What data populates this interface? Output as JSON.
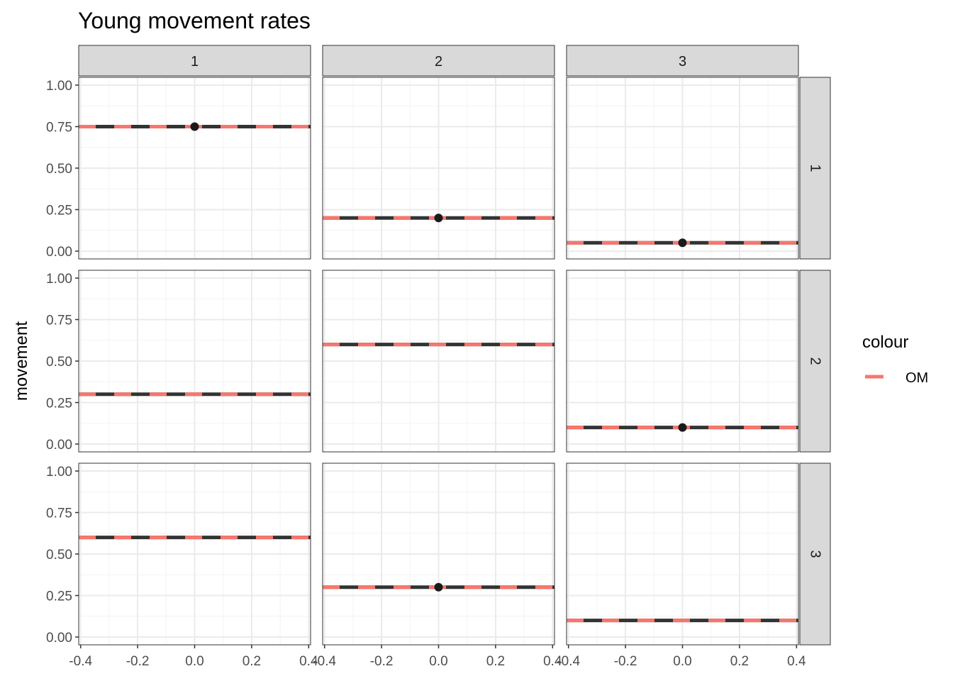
{
  "chart_data": {
    "type": "line",
    "title": "Young movement rates",
    "ylabel": "movement",
    "xlabel": "",
    "xlim": [
      -0.4,
      0.4
    ],
    "ylim": [
      0,
      1
    ],
    "xticks": [
      -0.4,
      -0.2,
      0.0,
      0.2,
      0.4
    ],
    "xtick_labels": [
      "-0.4",
      "-0.2",
      "0.0",
      "0.2",
      "0.4"
    ],
    "yticks": [
      0,
      0.25,
      0.5,
      0.75,
      1
    ],
    "ytick_labels": [
      "0.00",
      "0.25",
      "0.50",
      "0.75",
      "1.00"
    ],
    "col_strips": [
      "1",
      "2",
      "3"
    ],
    "row_strips": [
      "1",
      "2",
      "3"
    ],
    "legend": {
      "title": "colour",
      "entries": [
        {
          "label": "OM",
          "color": "#F8766D"
        }
      ]
    },
    "colors": {
      "om": "#F8766D",
      "line": "#333333",
      "point": "#1a1a1a",
      "strip": "#d9d9d9",
      "grid_major": "#ebebeb",
      "grid_minor": "#f4f4f4"
    },
    "panels": [
      {
        "row": 1,
        "col": 1,
        "om": 0.75,
        "point": 0.75
      },
      {
        "row": 1,
        "col": 2,
        "om": 0.2,
        "point": 0.2
      },
      {
        "row": 1,
        "col": 3,
        "om": 0.05,
        "point": 0.05
      },
      {
        "row": 2,
        "col": 1,
        "om": 0.3,
        "point": null
      },
      {
        "row": 2,
        "col": 2,
        "om": 0.6,
        "point": null
      },
      {
        "row": 2,
        "col": 3,
        "om": 0.1,
        "point": 0.1
      },
      {
        "row": 3,
        "col": 1,
        "om": 0.6,
        "point": null
      },
      {
        "row": 3,
        "col": 2,
        "om": 0.3,
        "point": 0.3
      },
      {
        "row": 3,
        "col": 3,
        "om": 0.1,
        "point": null
      }
    ]
  }
}
